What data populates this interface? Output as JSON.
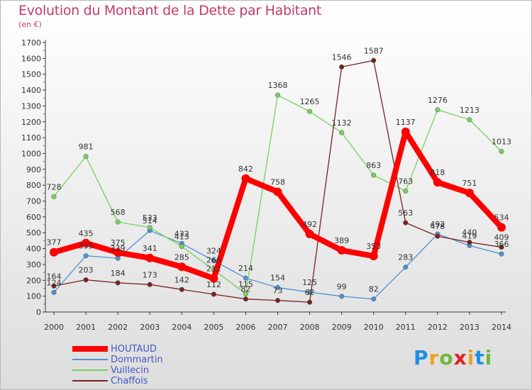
{
  "title": "Evolution du Montant de la Dette par Habitant",
  "subtitle": "(en €)",
  "chart_data": {
    "type": "line",
    "title": "Evolution du Montant de la Dette par Habitant",
    "subtitle": "(en €)",
    "x": [
      "2000",
      "2001",
      "2002",
      "2003",
      "2004",
      "2005",
      "2006",
      "2007",
      "2008",
      "2009",
      "2010",
      "2011",
      "2012",
      "2013",
      "2014"
    ],
    "ylim": [
      0,
      1700
    ],
    "yticks": [
      0,
      100,
      200,
      300,
      400,
      500,
      600,
      700,
      800,
      900,
      1000,
      1100,
      1200,
      1300,
      1400,
      1500,
      1600,
      1700
    ],
    "grid": false,
    "legend_position": "bottom-left",
    "series": [
      {
        "name": "HOUTAUD",
        "color": "#ff0000",
        "values": [
          377,
          435,
          375,
          341,
          285,
          212,
          842,
          758,
          492,
          389,
          353,
          1137,
          818,
          751,
          534
        ],
        "labels": [
          "377",
          "435",
          "375",
          "341",
          "285",
          "212",
          "842",
          "758",
          "492",
          "389",
          "353",
          "1137",
          "818",
          "751",
          "534"
        ]
      },
      {
        "name": "Dommartin",
        "color": "#4b92d6",
        "values": [
          124,
          355,
          339,
          514,
          432,
          324,
          214,
          154,
          125,
          99,
          82,
          283,
          492,
          419,
          366
        ],
        "labels": [
          "124",
          "355",
          "339",
          "514",
          "432",
          "324",
          "214",
          "154",
          "125",
          "99",
          "82",
          "283",
          "492",
          "419",
          "366"
        ]
      },
      {
        "name": "Vuillecin",
        "color": "#77d15c",
        "values": [
          728,
          981,
          568,
          533,
          413,
          266,
          115,
          1368,
          1265,
          1132,
          863,
          763,
          1276,
          1213,
          1013
        ],
        "labels": [
          "728",
          "981",
          "568",
          "533",
          "413",
          "266",
          "115",
          "1368",
          "1265",
          "1132",
          "863",
          "763",
          "1276",
          "1213",
          "1013"
        ]
      },
      {
        "name": "Chaffois",
        "color": "#7a2020",
        "values": [
          164,
          203,
          184,
          173,
          142,
          112,
          82,
          73,
          62,
          1546,
          1587,
          563,
          478,
          440,
          409
        ],
        "labels": [
          "164",
          "203",
          "184",
          "173",
          "142",
          "112",
          "82",
          "73",
          "62",
          "1546",
          "1587",
          "563",
          "478",
          "440",
          "409"
        ]
      }
    ]
  },
  "logo": {
    "letters": [
      "P",
      "r",
      "o",
      "x",
      "i",
      "t",
      "i"
    ],
    "colors": [
      "#1f8fe0",
      "#f0a020",
      "#6fb83c",
      "#e02020",
      "#f0a020",
      "#1f8fe0",
      "#6fb83c"
    ]
  }
}
